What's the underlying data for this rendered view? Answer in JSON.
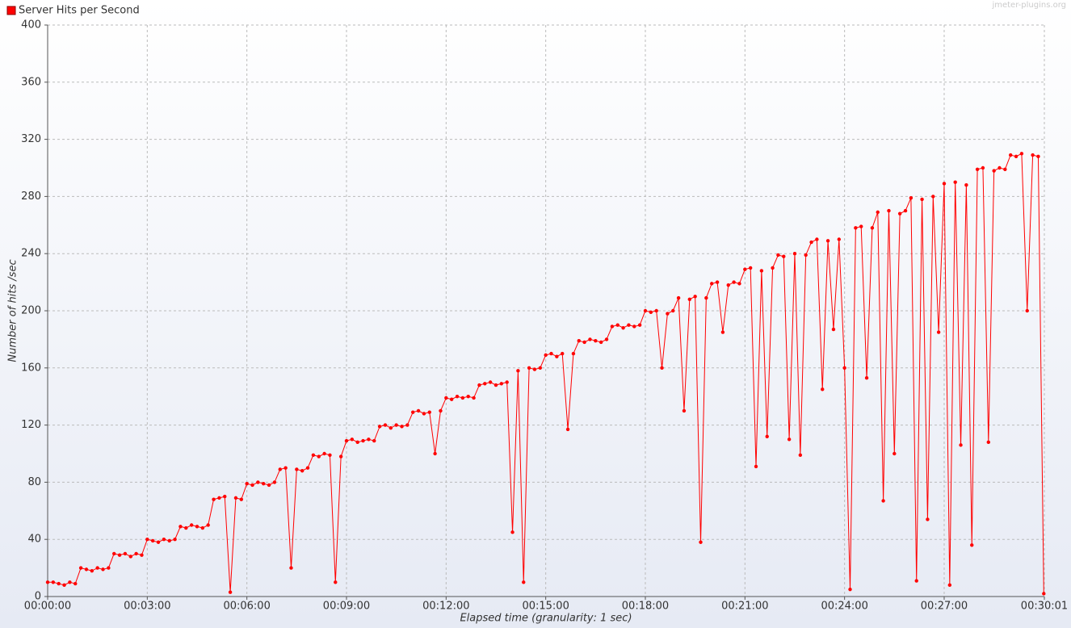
{
  "chart_data": {
    "type": "line",
    "legend_title": "Server Hits per Second",
    "watermark": "jmeter-plugins.org",
    "x_label": "Elapsed time (granularity: 1 sec)",
    "y_label": "Number of hits /sec",
    "xlim": [
      0,
      1801
    ],
    "ylim": [
      0,
      400
    ],
    "xticks": [
      {
        "value": 0,
        "label": "00:00:00"
      },
      {
        "value": 180,
        "label": "00:03:00"
      },
      {
        "value": 360,
        "label": "00:06:00"
      },
      {
        "value": 540,
        "label": "00:09:00"
      },
      {
        "value": 720,
        "label": "00:12:00"
      },
      {
        "value": 900,
        "label": "00:15:00"
      },
      {
        "value": 1080,
        "label": "00:18:00"
      },
      {
        "value": 1260,
        "label": "00:21:00"
      },
      {
        "value": 1440,
        "label": "00:24:00"
      },
      {
        "value": 1620,
        "label": "00:27:00"
      },
      {
        "value": 1801,
        "label": "00:30:01"
      }
    ],
    "yticks": [
      0,
      40,
      80,
      120,
      160,
      200,
      240,
      280,
      320,
      360,
      400
    ],
    "grid": true,
    "x": [
      0,
      10,
      20,
      30,
      40,
      50,
      60,
      70,
      80,
      90,
      100,
      110,
      120,
      130,
      140,
      150,
      160,
      170,
      180,
      190,
      200,
      210,
      220,
      230,
      240,
      250,
      260,
      270,
      280,
      290,
      300,
      310,
      320,
      330,
      340,
      350,
      360,
      370,
      380,
      390,
      400,
      410,
      420,
      430,
      440,
      450,
      460,
      470,
      480,
      490,
      500,
      510,
      520,
      530,
      540,
      550,
      560,
      570,
      580,
      590,
      600,
      610,
      620,
      630,
      640,
      650,
      660,
      670,
      680,
      690,
      700,
      710,
      720,
      730,
      740,
      750,
      760,
      770,
      780,
      790,
      800,
      810,
      820,
      830,
      840,
      850,
      860,
      870,
      880,
      890,
      900,
      910,
      920,
      930,
      940,
      950,
      960,
      970,
      980,
      990,
      1000,
      1010,
      1020,
      1030,
      1040,
      1050,
      1060,
      1070,
      1080,
      1090,
      1100,
      1110,
      1120,
      1130,
      1140,
      1150,
      1160,
      1170,
      1180,
      1190,
      1200,
      1210,
      1220,
      1230,
      1240,
      1250,
      1260,
      1270,
      1280,
      1290,
      1300,
      1310,
      1320,
      1330,
      1340,
      1350,
      1360,
      1370,
      1380,
      1390,
      1400,
      1410,
      1420,
      1430,
      1440,
      1450,
      1460,
      1470,
      1480,
      1490,
      1500,
      1510,
      1520,
      1530,
      1540,
      1550,
      1560,
      1570,
      1580,
      1590,
      1600,
      1610,
      1620,
      1630,
      1640,
      1650,
      1660,
      1670,
      1680,
      1690,
      1700,
      1710,
      1720,
      1730,
      1740,
      1750,
      1760,
      1770,
      1780,
      1790,
      1800
    ],
    "series": [
      {
        "name": "Server Hits per Second",
        "color": "#ff0000",
        "values": [
          10,
          10,
          9,
          8,
          10,
          9,
          20,
          19,
          18,
          20,
          19,
          20,
          30,
          29,
          30,
          28,
          30,
          29,
          40,
          39,
          38,
          40,
          39,
          40,
          49,
          48,
          50,
          49,
          48,
          50,
          68,
          69,
          70,
          3,
          69,
          68,
          79,
          78,
          80,
          79,
          78,
          80,
          89,
          90,
          20,
          89,
          88,
          90,
          99,
          98,
          100,
          99,
          10,
          98,
          109,
          110,
          108,
          109,
          110,
          109,
          119,
          120,
          118,
          120,
          119,
          120,
          129,
          130,
          128,
          129,
          100,
          130,
          139,
          138,
          140,
          139,
          140,
          139,
          148,
          149,
          150,
          148,
          149,
          150,
          45,
          158,
          10,
          160,
          159,
          160,
          169,
          170,
          168,
          170,
          117,
          170,
          179,
          178,
          180,
          179,
          178,
          180,
          189,
          190,
          188,
          190,
          189,
          190,
          200,
          199,
          200,
          160,
          198,
          200,
          209,
          130,
          208,
          210,
          38,
          209,
          219,
          220,
          185,
          218,
          220,
          219,
          229,
          230,
          91,
          228,
          112,
          230,
          239,
          238,
          110,
          240,
          99,
          239,
          248,
          250,
          145,
          249,
          187,
          250,
          160,
          5,
          258,
          259,
          153,
          258,
          269,
          67,
          270,
          100,
          268,
          270,
          279,
          11,
          278,
          54,
          280,
          185,
          289,
          8,
          290,
          106,
          288,
          36,
          299,
          300,
          108,
          298,
          300,
          299,
          309,
          308,
          310,
          200,
          309,
          308,
          2
        ]
      }
    ]
  }
}
